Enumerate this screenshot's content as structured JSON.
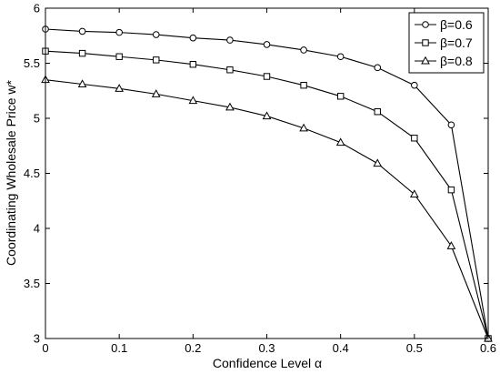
{
  "chart_data": {
    "type": "line",
    "xlabel": "Confidence Level α",
    "ylabel": "Coordinating Wholesale Price w*",
    "xlim": [
      0,
      0.6
    ],
    "ylim": [
      3,
      6
    ],
    "xticks": [
      0,
      0.1,
      0.2,
      0.3,
      0.4,
      0.5,
      0.6
    ],
    "xtick_labels": [
      "0",
      "0.1",
      "0.2",
      "0.3",
      "0.4",
      "0.5",
      "0.6"
    ],
    "yticks": [
      3,
      3.5,
      4,
      4.5,
      5,
      5.5,
      6
    ],
    "ytick_labels": [
      "3",
      "3.5",
      "4",
      "4.5",
      "5",
      "5.5",
      "6"
    ],
    "grid": false,
    "legend_position": "top-right",
    "x": [
      0,
      0.05,
      0.1,
      0.15,
      0.2,
      0.25,
      0.3,
      0.35,
      0.4,
      0.45,
      0.5,
      0.55,
      0.6
    ],
    "series": [
      {
        "name": "β=0.6",
        "marker": "circle",
        "values": [
          5.81,
          5.79,
          5.78,
          5.76,
          5.73,
          5.71,
          5.67,
          5.62,
          5.56,
          5.46,
          5.3,
          4.94,
          3.0
        ]
      },
      {
        "name": "β=0.7",
        "marker": "square",
        "values": [
          5.61,
          5.59,
          5.56,
          5.53,
          5.49,
          5.44,
          5.38,
          5.3,
          5.2,
          5.06,
          4.82,
          4.35,
          3.0
        ]
      },
      {
        "name": "β=0.8",
        "marker": "triangle",
        "values": [
          5.35,
          5.31,
          5.27,
          5.22,
          5.16,
          5.1,
          5.02,
          4.91,
          4.78,
          4.59,
          4.31,
          3.84,
          3.0
        ]
      }
    ],
    "colors": {
      "line": "#000000",
      "marker_fill": "#ffffff",
      "background": "#ffffff"
    }
  }
}
